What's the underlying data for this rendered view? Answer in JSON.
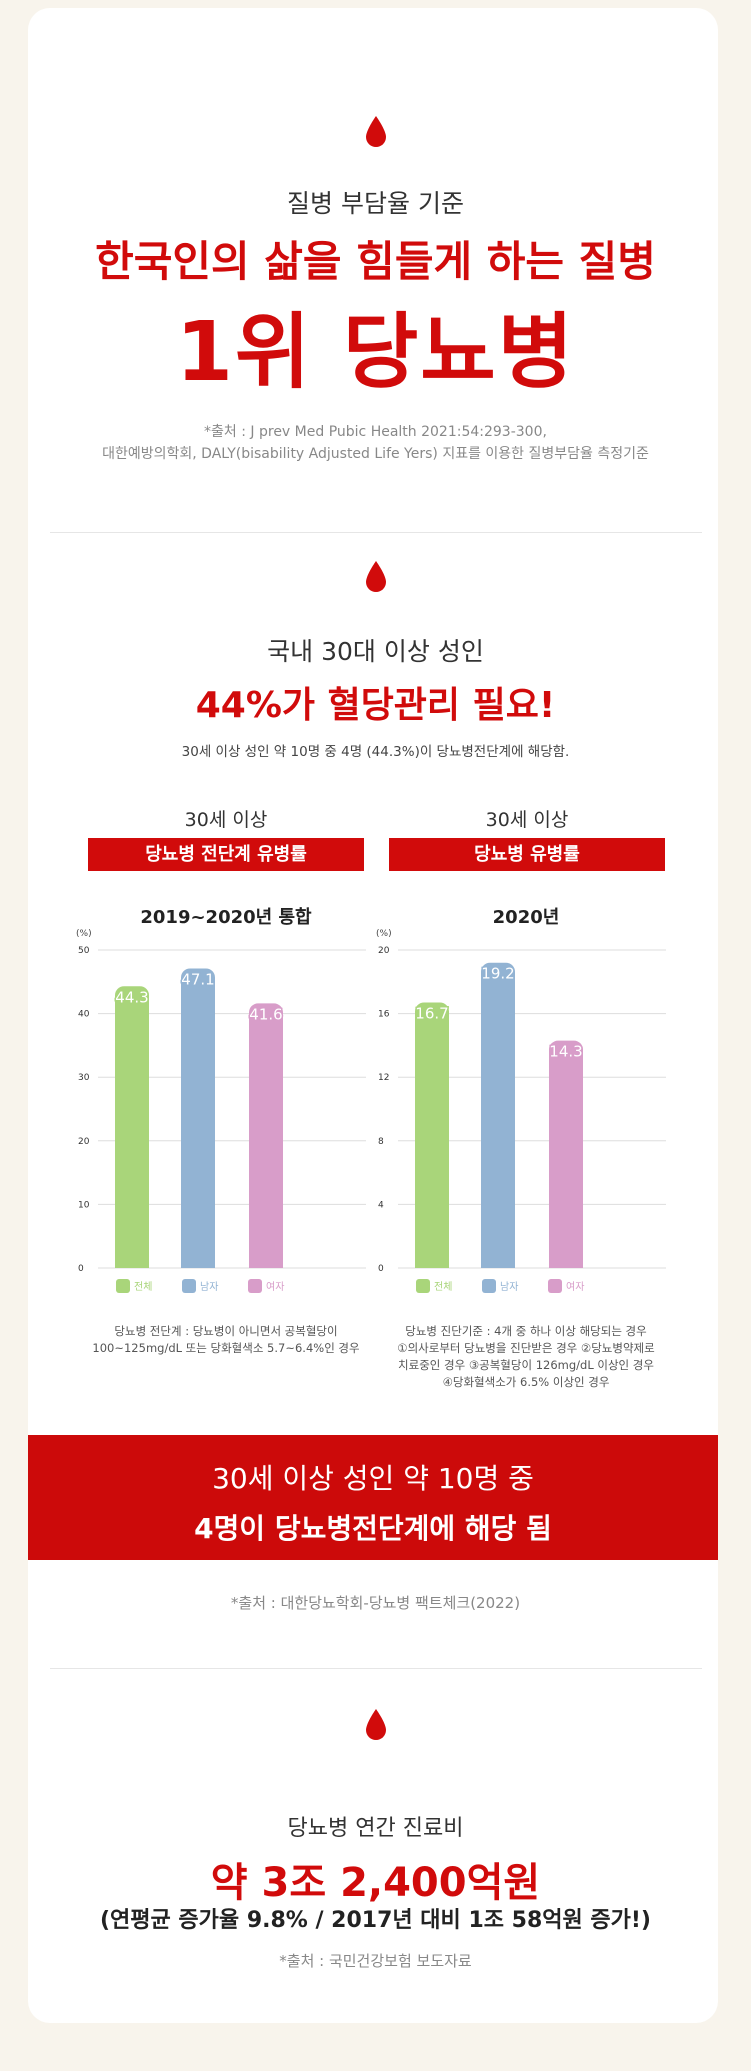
{
  "section1": {
    "subtitle": "질병 부담율 기준",
    "headline": "한국인의 삶을 힘들게 하는 질병",
    "big": "1위 당뇨병",
    "source_line1": "*출처 : J prev  Med Pubic Health 2021:54:293-300,",
    "source_line2": "대한예방의학회, DALY(bisability Adjusted Life Yers) 지표를 이용한 질병부담율 측정기준"
  },
  "section2": {
    "subtitle": "국내 30대 이상 성인",
    "headline": "44%가 혈당관리 필요!",
    "desc": "30세 이상 성인 약 10명 중 4명 (44.3%)이 당뇨병전단계에 해당함.",
    "left_caption": "30세 이상",
    "left_bar": "당뇨병 전단계 유병률",
    "right_caption": "30세 이상",
    "right_bar": "당뇨병 유병률",
    "left_note": "당뇨병 전단계 : 당뇨병이 아니면서 공복혈당이\n100~125mg/dL 또는 당화혈색소 5.7~6.4%인 경우",
    "right_note": "당뇨병 진단기준 : 4개 중 하나 이상 해당되는 경우\n①의사로부터 당뇨병을 진단받은 경우 ②당뇨병약제로\n치료중인 경우 ③공복혈당이 126mg/dL 이상인 경우\n④당화혈색소가 6.5% 이상인 경우"
  },
  "banner": {
    "line1": "30세 이상 성인 약 10명 중",
    "line2": "4명이 당뇨병전단계에 해당 됨"
  },
  "source2": "*출처 : 대한당뇨학회-당뇨병 팩트체크(2022)",
  "section3": {
    "subtitle": "당뇨병 연간 진료비",
    "headline": "약 3조 2,400억원",
    "detail": "(연평균 증가율 9.8% / 2017년 대비 1조 58억원 증가!)",
    "source": "*출처 : 국민건강보험 보도자료"
  },
  "colors": {
    "accent": "#d10b0b",
    "all": "#a9d57a",
    "male": "#92b3d3",
    "female": "#d89dc9"
  },
  "chart_data": [
    {
      "type": "bar",
      "title": "2019~2020년 통합",
      "ylabel": "(%)",
      "ylim": [
        0,
        50
      ],
      "yticks": [
        0,
        10,
        20,
        30,
        40,
        50
      ],
      "categories": [
        "전체",
        "남자",
        "여자"
      ],
      "values": [
        44.3,
        47.1,
        41.6
      ],
      "legend": [
        "전체",
        "남자",
        "여자"
      ],
      "legend_position": "bottom",
      "grid": true
    },
    {
      "type": "bar",
      "title": "2020년",
      "ylabel": "(%)",
      "ylim": [
        0,
        20
      ],
      "yticks": [
        0,
        4,
        8,
        12,
        16,
        20
      ],
      "categories": [
        "전체",
        "남자",
        "여자"
      ],
      "values": [
        16.7,
        19.2,
        14.3
      ],
      "legend": [
        "전체",
        "남자",
        "여자"
      ],
      "legend_position": "bottom",
      "grid": true
    }
  ]
}
